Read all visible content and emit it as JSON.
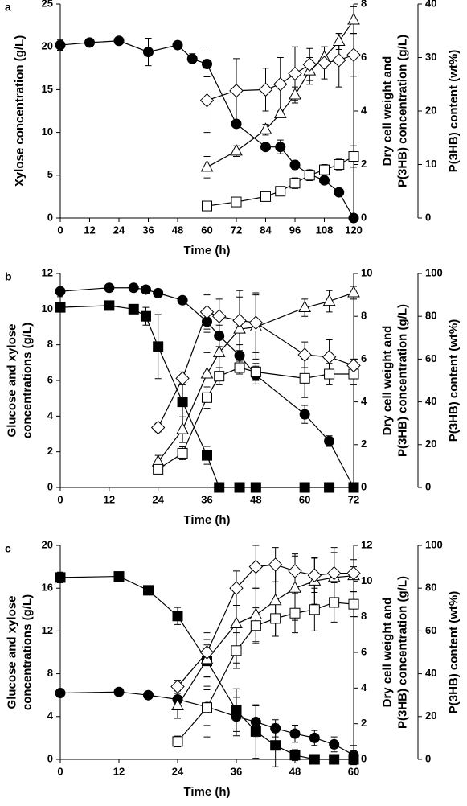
{
  "chart_data": [
    {
      "type": "line",
      "label": "a",
      "xlabel": "Time (h)",
      "ylabel": [
        "Xylose concentration (g/L)"
      ],
      "y2label": [
        "Dry cell weight and",
        "P(3HB) concentration (g/L)"
      ],
      "y3label": "P(3HB) content (wt%)",
      "xlim": [
        0,
        120
      ],
      "xticks": [
        0,
        12,
        24,
        36,
        48,
        60,
        72,
        84,
        96,
        108,
        120
      ],
      "ylim": [
        0,
        25
      ],
      "yticks": [
        0,
        5,
        10,
        15,
        20,
        25
      ],
      "y2lim": [
        0,
        8
      ],
      "y2ticks": [
        0,
        2,
        4,
        6,
        8
      ],
      "y3lim": [
        0,
        40
      ],
      "y3ticks": [
        0,
        10,
        20,
        30,
        40
      ],
      "series": [
        {
          "marker": "circle",
          "fill": "#000000",
          "color": "#000000",
          "axis": "y",
          "x": [
            0,
            12,
            24,
            36,
            48,
            54,
            60,
            72,
            84,
            90,
            96,
            102,
            108,
            114,
            120
          ],
          "values": [
            20.2,
            20.5,
            20.7,
            19.4,
            20.2,
            18.6,
            18.0,
            11.0,
            8.3,
            8.3,
            6.2,
            5.1,
            4.4,
            3.0,
            0.0
          ],
          "errors": [
            0.6,
            0.3,
            0.2,
            1.6,
            0.2,
            0.6,
            1.5,
            0.3,
            0.4,
            0.8,
            0.5,
            0.4,
            0.3,
            0.2,
            0.1
          ]
        },
        {
          "marker": "triangle",
          "fill": "#ffffff",
          "color": "#000000",
          "axis": "y2",
          "x": [
            60,
            72,
            84,
            90,
            96,
            102,
            108,
            114,
            120
          ],
          "values": [
            1.9,
            2.5,
            3.3,
            3.9,
            4.6,
            5.5,
            6.0,
            6.6,
            7.4
          ],
          "errors": [
            0.4,
            0.2,
            0.2,
            0.1,
            0.3,
            0.5,
            0.4,
            0.3,
            0.5
          ]
        },
        {
          "marker": "square",
          "fill": "#ffffff",
          "color": "#000000",
          "axis": "y2",
          "x": [
            60,
            72,
            84,
            90,
            96,
            102,
            108,
            114,
            120
          ],
          "values": [
            0.45,
            0.6,
            0.8,
            1.0,
            1.3,
            1.6,
            1.8,
            2.0,
            2.3
          ],
          "errors": [
            0.1,
            0.1,
            0.1,
            0.1,
            0.2,
            0.2,
            0.2,
            0.2,
            0.4
          ]
        },
        {
          "marker": "diamond",
          "fill": "#ffffff",
          "color": "#000000",
          "axis": "y3",
          "x": [
            60,
            72,
            84,
            90,
            96,
            102,
            108,
            114,
            120
          ],
          "values": [
            22,
            23.8,
            24,
            25,
            27,
            28.7,
            29,
            29.5,
            30.5
          ],
          "errors": [
            6,
            6,
            4,
            5,
            5,
            3,
            3,
            5,
            4
          ]
        }
      ]
    },
    {
      "type": "line",
      "label": "b",
      "xlabel": "Time (h)",
      "ylabel": [
        "Glucose and xylose",
        "concentrations (g/L)"
      ],
      "y2label": [
        "Dry cell weight and",
        "P(3HB) concentration (g/L)"
      ],
      "y3label": "P(3HB) content (wt%)",
      "xlim": [
        0,
        72
      ],
      "xticks": [
        0,
        12,
        24,
        36,
        48,
        60,
        72
      ],
      "ylim": [
        0,
        12
      ],
      "yticks": [
        0,
        2,
        4,
        6,
        8,
        10,
        12
      ],
      "y2lim": [
        0,
        10
      ],
      "y2ticks": [
        0,
        2,
        4,
        6,
        8,
        10
      ],
      "y3lim": [
        0,
        100
      ],
      "y3ticks": [
        0,
        20,
        40,
        60,
        80,
        100
      ],
      "series": [
        {
          "marker": "circle",
          "fill": "#000000",
          "color": "#000000",
          "axis": "y",
          "x": [
            0,
            12,
            18,
            21,
            24,
            30,
            36,
            39,
            44,
            48,
            60,
            66,
            72
          ],
          "values": [
            11.0,
            11.2,
            11.2,
            11.1,
            10.9,
            10.5,
            9.3,
            8.5,
            7.4,
            6.3,
            4.1,
            2.6,
            0.0
          ],
          "errors": [
            0.3,
            0.1,
            0.1,
            0.1,
            0.1,
            0.2,
            0.6,
            0.6,
            0.6,
            0.5,
            0.5,
            0.3,
            0.1
          ]
        },
        {
          "marker": "square",
          "fill": "#000000",
          "color": "#000000",
          "axis": "y",
          "x": [
            0,
            12,
            18,
            21,
            24,
            30,
            36,
            39,
            44,
            48,
            60,
            66,
            72
          ],
          "values": [
            10.1,
            10.2,
            10.0,
            9.6,
            7.9,
            4.8,
            1.8,
            0,
            0,
            0,
            0,
            0,
            0
          ],
          "errors": [
            0.1,
            0.1,
            0.1,
            0.5,
            1.8,
            1.5,
            0.5,
            0,
            0,
            0,
            0,
            0,
            0
          ]
        },
        {
          "marker": "triangle",
          "fill": "#ffffff",
          "color": "#000000",
          "axis": "y2",
          "x": [
            24,
            30,
            36,
            39,
            44,
            48,
            60,
            66,
            72
          ],
          "values": [
            1.2,
            2.7,
            5.3,
            6.3,
            7.4,
            7.5,
            8.4,
            8.7,
            9.1
          ],
          "errors": [
            0.3,
            0.6,
            1.0,
            1.0,
            1.5,
            1.5,
            0.4,
            0.5,
            0.3
          ]
        },
        {
          "marker": "square",
          "fill": "#ffffff",
          "color": "#000000",
          "axis": "y2",
          "x": [
            24,
            30,
            36,
            39,
            44,
            48,
            60,
            66,
            72
          ],
          "values": [
            0.85,
            1.6,
            4.2,
            5.2,
            5.6,
            5.4,
            5.1,
            5.3,
            5.3
          ],
          "errors": [
            0.1,
            0.3,
            0.5,
            0.4,
            0.3,
            0.4,
            0.9,
            0.5,
            0.5
          ]
        },
        {
          "marker": "diamond",
          "fill": "#ffffff",
          "color": "#000000",
          "axis": "y3",
          "x": [
            24,
            30,
            36,
            39,
            44,
            48,
            60,
            66,
            72
          ],
          "values": [
            28,
            51,
            82,
            80,
            78,
            77,
            62,
            61,
            57
          ],
          "errors": [
            2,
            3,
            8,
            8,
            14,
            14,
            6,
            8,
            3
          ]
        }
      ]
    },
    {
      "type": "line",
      "label": "c",
      "xlabel": "Time (h)",
      "ylabel": [
        "Glucose and xylose",
        "concentrations (g/L)"
      ],
      "y2label": [
        "Dry cell weight and",
        "P(3HB) concentration (g/L)"
      ],
      "y3label": "P(3HB) content (wt%)",
      "xlim": [
        0,
        60
      ],
      "xticks": [
        0,
        12,
        24,
        36,
        48,
        60
      ],
      "ylim": [
        0,
        20
      ],
      "yticks": [
        0,
        4,
        8,
        12,
        16,
        20
      ],
      "y2lim": [
        0,
        12
      ],
      "y2ticks": [
        0,
        2,
        4,
        6,
        8,
        10,
        12
      ],
      "y3lim": [
        0,
        100
      ],
      "y3ticks": [
        0,
        20,
        40,
        60,
        80,
        100
      ],
      "series": [
        {
          "marker": "square",
          "fill": "#000000",
          "color": "#000000",
          "axis": "y",
          "x": [
            0,
            12,
            18,
            24,
            30,
            36,
            40,
            44,
            48,
            52,
            56,
            60
          ],
          "values": [
            17.0,
            17.1,
            15.8,
            13.4,
            9.2,
            4.6,
            2.6,
            1.3,
            0.4,
            0,
            0,
            0
          ],
          "errors": [
            0.5,
            0.2,
            0.3,
            0.8,
            1.5,
            2.0,
            2.5,
            2.0,
            0.5,
            0,
            0,
            0
          ]
        },
        {
          "marker": "circle",
          "fill": "#000000",
          "color": "#000000",
          "axis": "y",
          "x": [
            0,
            12,
            18,
            24,
            30,
            36,
            40,
            44,
            48,
            52,
            56,
            60
          ],
          "values": [
            6.2,
            6.3,
            6.0,
            5.6,
            4.9,
            4.0,
            3.5,
            2.9,
            2.4,
            2.0,
            1.4,
            0.4
          ],
          "errors": [
            0.2,
            0.2,
            0.2,
            0.8,
            2.8,
            1.8,
            1.5,
            0.8,
            0.8,
            0.7,
            0.7,
            0.9
          ]
        },
        {
          "marker": "triangle",
          "fill": "#ffffff",
          "color": "#000000",
          "axis": "y2",
          "x": [
            24,
            30,
            36,
            40,
            44,
            48,
            52,
            56,
            60
          ],
          "values": [
            3.0,
            5.6,
            7.6,
            8.1,
            8.9,
            9.6,
            10.0,
            10.2,
            10.3
          ],
          "errors": [
            0.7,
            1.5,
            2.2,
            1.5,
            2.0,
            1.8,
            1.3,
            1.4,
            0.9
          ]
        },
        {
          "marker": "square",
          "fill": "#ffffff",
          "color": "#000000",
          "axis": "y2",
          "x": [
            24,
            30,
            36,
            40,
            44,
            48,
            52,
            56,
            60
          ],
          "values": [
            1.0,
            2.9,
            6.1,
            7.5,
            7.9,
            8.2,
            8.4,
            8.8,
            8.7
          ],
          "errors": [
            0.3,
            1.0,
            1.0,
            1.0,
            1.0,
            1.1,
            1.2,
            1.1,
            0.7
          ]
        },
        {
          "marker": "diamond",
          "fill": "#ffffff",
          "color": "#000000",
          "axis": "y3",
          "x": [
            24,
            30,
            36,
            40,
            44,
            48,
            52,
            56,
            60
          ],
          "values": [
            34,
            50,
            80,
            90,
            91,
            88,
            86,
            87,
            87
          ],
          "errors": [
            3,
            6,
            8,
            10,
            8,
            8,
            8,
            12,
            3
          ]
        }
      ]
    }
  ]
}
